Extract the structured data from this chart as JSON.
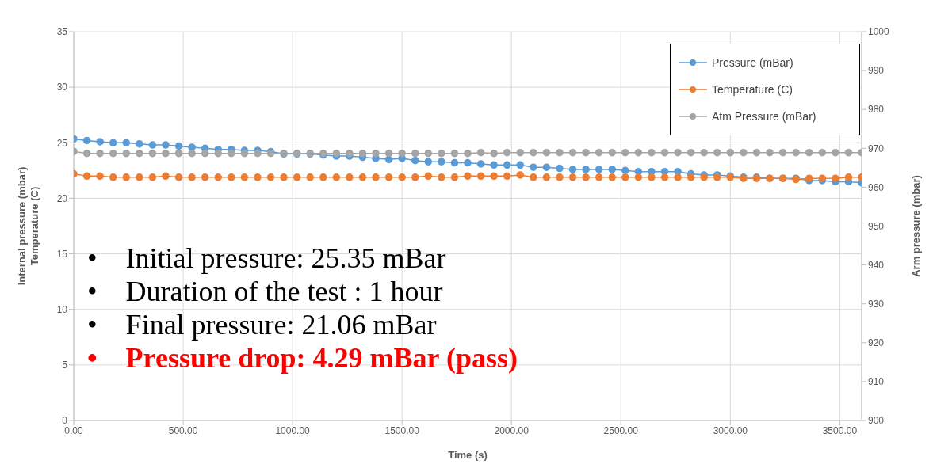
{
  "chart_data": {
    "type": "line",
    "xlabel": "Time (s)",
    "ylabel": "Internal pressure (mbar)\nTemperature (C)",
    "y2label": "Arm pressure (mbar)",
    "x": [
      0,
      60,
      120,
      180,
      240,
      300,
      360,
      420,
      480,
      540,
      600,
      660,
      720,
      780,
      840,
      900,
      960,
      1020,
      1080,
      1140,
      1200,
      1260,
      1320,
      1380,
      1440,
      1500,
      1560,
      1620,
      1680,
      1740,
      1800,
      1860,
      1920,
      1980,
      2040,
      2100,
      2160,
      2220,
      2280,
      2340,
      2400,
      2460,
      2520,
      2580,
      2640,
      2700,
      2760,
      2820,
      2880,
      2940,
      3000,
      3060,
      3120,
      3180,
      3240,
      3300,
      3360,
      3420,
      3480,
      3540,
      3600
    ],
    "series": [
      {
        "name": "Pressure (mBar)",
        "color": "#5b9bd5",
        "values": [
          25.35,
          25.2,
          25.1,
          25.0,
          25.0,
          24.9,
          24.8,
          24.8,
          24.7,
          24.6,
          24.5,
          24.4,
          24.4,
          24.3,
          24.3,
          24.2,
          24.0,
          24.0,
          24.0,
          23.9,
          23.8,
          23.8,
          23.7,
          23.6,
          23.5,
          23.6,
          23.4,
          23.3,
          23.3,
          23.2,
          23.2,
          23.1,
          23.0,
          23.0,
          23.0,
          22.8,
          22.8,
          22.7,
          22.6,
          22.6,
          22.6,
          22.6,
          22.5,
          22.4,
          22.4,
          22.4,
          22.4,
          22.2,
          22.1,
          22.1,
          22.0,
          21.9,
          21.9,
          21.8,
          21.8,
          21.8,
          21.6,
          21.6,
          21.5,
          21.5,
          21.4
        ]
      },
      {
        "name": "Temperature (C)",
        "color": "#ed7d31",
        "values": [
          22.2,
          22.0,
          22.0,
          21.9,
          21.9,
          21.9,
          21.9,
          22.0,
          21.9,
          21.9,
          21.9,
          21.9,
          21.9,
          21.9,
          21.9,
          21.9,
          21.9,
          21.9,
          21.9,
          21.9,
          21.9,
          21.9,
          21.9,
          21.9,
          21.9,
          21.9,
          21.9,
          22.0,
          21.9,
          21.9,
          22.0,
          22.0,
          22.0,
          22.0,
          22.1,
          21.9,
          21.9,
          21.9,
          21.9,
          21.9,
          21.9,
          21.9,
          21.9,
          21.9,
          21.9,
          21.9,
          21.9,
          21.9,
          21.9,
          21.9,
          21.9,
          21.8,
          21.8,
          21.8,
          21.8,
          21.7,
          21.8,
          21.8,
          21.8,
          21.9,
          21.9
        ]
      },
      {
        "name": "Atm Pressure (mBar)",
        "color": "#a5a5a5",
        "axis": "y2",
        "values": [
          969.2,
          968.7,
          968.7,
          968.7,
          968.7,
          968.7,
          968.7,
          968.7,
          968.7,
          968.7,
          968.7,
          968.7,
          968.7,
          968.7,
          968.7,
          968.7,
          968.7,
          968.7,
          968.7,
          968.7,
          968.7,
          968.7,
          968.7,
          968.7,
          968.7,
          968.7,
          968.7,
          968.7,
          968.7,
          968.7,
          968.7,
          968.9,
          968.7,
          968.9,
          968.9,
          968.9,
          968.9,
          968.9,
          968.9,
          968.9,
          968.9,
          968.9,
          968.9,
          968.9,
          968.9,
          968.9,
          968.9,
          968.9,
          968.9,
          968.9,
          968.9,
          968.9,
          968.9,
          968.9,
          968.9,
          968.9,
          968.9,
          968.9,
          968.9,
          968.9,
          968.9
        ]
      }
    ],
    "xlim": [
      0,
      3600
    ],
    "xticks": [
      {
        "value": 0,
        "label": "0.00"
      },
      {
        "value": 500,
        "label": "500.00"
      },
      {
        "value": 1000,
        "label": "1000.00"
      },
      {
        "value": 1500,
        "label": "1500.00"
      },
      {
        "value": 2000,
        "label": "2000.00"
      },
      {
        "value": 2500,
        "label": "2500.00"
      },
      {
        "value": 3000,
        "label": "3000.00"
      },
      {
        "value": 3500,
        "label": "3500.00"
      }
    ],
    "ylim": [
      0,
      35
    ],
    "yticks": [
      0,
      5,
      10,
      15,
      20,
      25,
      30,
      35
    ],
    "y2lim": [
      900,
      1000
    ],
    "y2ticks": [
      900,
      910,
      920,
      930,
      940,
      950,
      960,
      970,
      980,
      990,
      1000
    ],
    "grid": true,
    "legend": "top right",
    "marker": "circle",
    "line_style": "solid",
    "annotations": [
      "•    Initial pressure: 25.35 mBar",
      "•    Duration of the test : 1 hour",
      "•    Final pressure: 21.06 mBar",
      "•    Pressure drop: 4.29 mBar (pass)"
    ]
  }
}
